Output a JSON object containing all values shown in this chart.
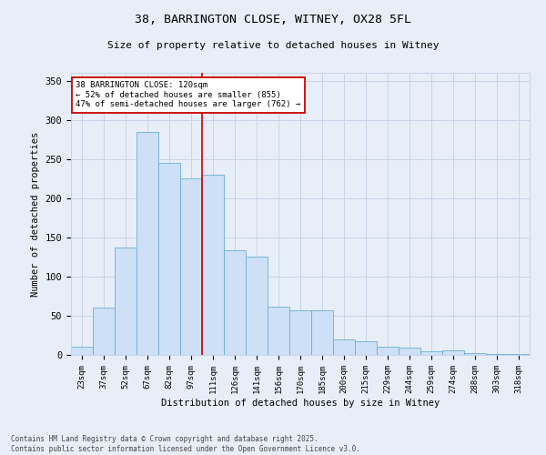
{
  "title_line1": "38, BARRINGTON CLOSE, WITNEY, OX28 5FL",
  "title_line2": "Size of property relative to detached houses in Witney",
  "xlabel": "Distribution of detached houses by size in Witney",
  "ylabel": "Number of detached properties",
  "categories": [
    "23sqm",
    "37sqm",
    "52sqm",
    "67sqm",
    "82sqm",
    "97sqm",
    "111sqm",
    "126sqm",
    "141sqm",
    "156sqm",
    "170sqm",
    "185sqm",
    "200sqm",
    "215sqm",
    "229sqm",
    "244sqm",
    "259sqm",
    "274sqm",
    "288sqm",
    "303sqm",
    "318sqm"
  ],
  "values": [
    10,
    60,
    137,
    285,
    245,
    225,
    230,
    133,
    125,
    62,
    57,
    57,
    20,
    17,
    10,
    9,
    5,
    6,
    2,
    1,
    1
  ],
  "bar_color": "#cde0f5",
  "bar_edge_color": "#6aaed6",
  "grid_color": "#c8d4e8",
  "background_color": "#e8eef8",
  "vline_x": 6.0,
  "vline_color": "#cc0000",
  "annotation_text": "38 BARRINGTON CLOSE: 120sqm\n← 52% of detached houses are smaller (855)\n47% of semi-detached houses are larger (762) →",
  "annotation_box_color": "#ffffff",
  "annotation_box_edge": "#cc0000",
  "ylim": [
    0,
    360
  ],
  "yticks": [
    0,
    50,
    100,
    150,
    200,
    250,
    300,
    350
  ],
  "footnote": "Contains HM Land Registry data © Crown copyright and database right 2025.\nContains public sector information licensed under the Open Government Licence v3.0."
}
